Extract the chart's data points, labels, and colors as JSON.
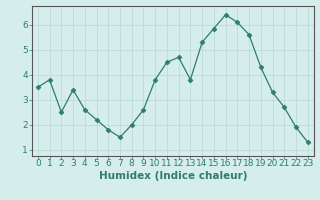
{
  "x": [
    0,
    1,
    2,
    3,
    4,
    5,
    6,
    7,
    8,
    9,
    10,
    11,
    12,
    13,
    14,
    15,
    16,
    17,
    18,
    19,
    20,
    21,
    22,
    23
  ],
  "y": [
    3.5,
    3.8,
    2.5,
    3.4,
    2.6,
    2.2,
    1.8,
    1.5,
    2.0,
    2.6,
    3.8,
    4.5,
    4.7,
    3.8,
    5.3,
    5.85,
    6.4,
    6.1,
    5.6,
    4.3,
    3.3,
    2.7,
    1.9,
    1.3
  ],
  "line_color": "#2e7d6e",
  "marker": "D",
  "marker_size": 2.5,
  "bg_color": "#d6eeeb",
  "grid_color": "#b8d8d4",
  "xlabel": "Humidex (Indice chaleur)",
  "xlim": [
    -0.5,
    23.5
  ],
  "ylim": [
    0.75,
    6.75
  ],
  "yticks": [
    1,
    2,
    3,
    4,
    5,
    6
  ],
  "xticks": [
    0,
    1,
    2,
    3,
    4,
    5,
    6,
    7,
    8,
    9,
    10,
    11,
    12,
    13,
    14,
    15,
    16,
    17,
    18,
    19,
    20,
    21,
    22,
    23
  ],
  "label_fontsize": 7.5,
  "tick_fontsize": 6.5,
  "spine_color": "#555555"
}
